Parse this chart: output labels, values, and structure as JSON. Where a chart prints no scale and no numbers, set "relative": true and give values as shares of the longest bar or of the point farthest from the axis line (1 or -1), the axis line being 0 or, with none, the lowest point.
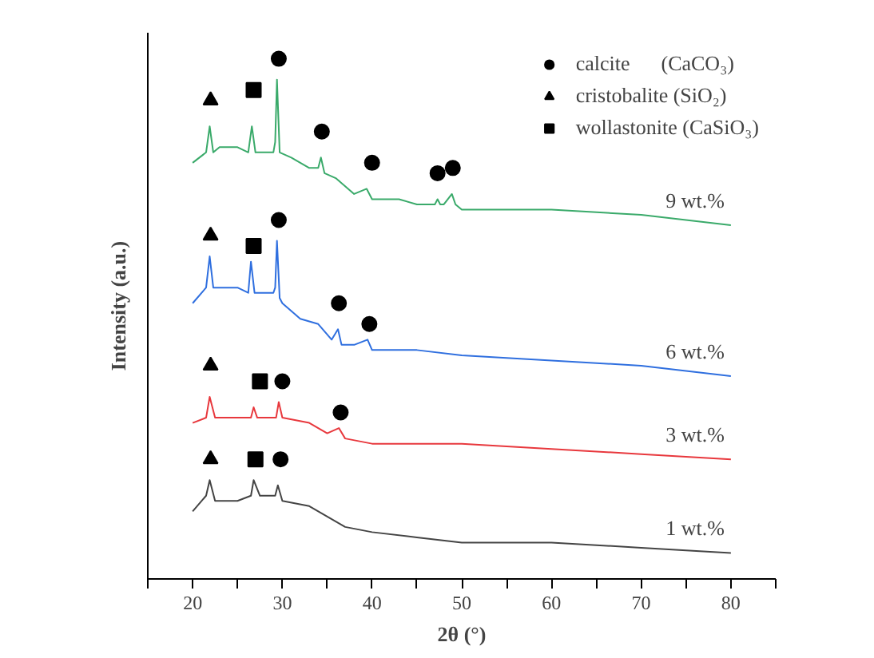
{
  "chart_data": {
    "type": "line",
    "relative": true,
    "xlabel": "2θ (°)",
    "ylabel": "Intensity (a.u.)",
    "xlim": [
      15,
      85
    ],
    "xticks": [
      {
        "value": 15,
        "label": null
      },
      20,
      {
        "value": 25,
        "label": null
      },
      30,
      {
        "value": 35,
        "label": null
      },
      40,
      {
        "value": 45,
        "label": null
      },
      50,
      {
        "value": 55,
        "label": null
      },
      60,
      {
        "value": 65,
        "label": null
      },
      70,
      {
        "value": 75,
        "label": null
      },
      80,
      {
        "value": 85,
        "label": null
      }
    ],
    "tick_labels": "x",
    "grid": false,
    "legend": "top right",
    "series": [
      {
        "name": "9 wt.%",
        "color": "#3aaa6a",
        "x": [
          20,
          21.5,
          21.9,
          22.3,
          23,
          25,
          26.2,
          26.6,
          27,
          29,
          29.2,
          29.4,
          29.7,
          31,
          33,
          34,
          34.3,
          34.7,
          36,
          38,
          39.4,
          40,
          43,
          45,
          47,
          47.3,
          47.6,
          48,
          48.9,
          49.3,
          50,
          60,
          70,
          80
        ],
        "values": [
          0.8,
          0.82,
          0.87,
          0.82,
          0.83,
          0.83,
          0.82,
          0.87,
          0.82,
          0.82,
          0.84,
          0.96,
          0.82,
          0.81,
          0.79,
          0.79,
          0.81,
          0.78,
          0.77,
          0.74,
          0.75,
          0.73,
          0.73,
          0.72,
          0.72,
          0.73,
          0.72,
          0.72,
          0.74,
          0.72,
          0.71,
          0.71,
          0.7,
          0.68
        ]
      },
      {
        "name": "6 wt.%",
        "color": "#2f6fdf",
        "x": [
          20,
          21.5,
          21.9,
          22.3,
          23,
          25,
          26.2,
          26.5,
          26.9,
          29,
          29.2,
          29.4,
          29.7,
          30,
          32,
          34,
          35.5,
          36.2,
          36.6,
          38,
          39.5,
          40,
          45,
          50,
          60,
          70,
          80
        ],
        "values": [
          0.53,
          0.56,
          0.62,
          0.56,
          0.56,
          0.56,
          0.55,
          0.61,
          0.55,
          0.55,
          0.56,
          0.65,
          0.54,
          0.53,
          0.5,
          0.49,
          0.46,
          0.48,
          0.45,
          0.45,
          0.46,
          0.44,
          0.44,
          0.43,
          0.42,
          0.41,
          0.39
        ]
      },
      {
        "name": "3 wt.%",
        "color": "#e8383d",
        "x": [
          20,
          21.5,
          21.9,
          22.5,
          25,
          26.5,
          26.8,
          27.2,
          29.3,
          29.6,
          30,
          33,
          35,
          36.3,
          37,
          40,
          45,
          50,
          60,
          70,
          80
        ],
        "values": [
          0.3,
          0.31,
          0.35,
          0.31,
          0.31,
          0.31,
          0.33,
          0.31,
          0.31,
          0.34,
          0.31,
          0.3,
          0.28,
          0.29,
          0.27,
          0.26,
          0.26,
          0.26,
          0.25,
          0.24,
          0.23
        ]
      },
      {
        "name": "1 wt.%",
        "color": "#444444",
        "x": [
          20,
          21.5,
          21.9,
          22.5,
          25,
          26.5,
          26.8,
          27.5,
          29.2,
          29.5,
          30,
          33,
          35,
          37,
          40,
          45,
          50,
          60,
          70,
          80
        ],
        "values": [
          0.13,
          0.16,
          0.19,
          0.15,
          0.15,
          0.16,
          0.19,
          0.16,
          0.16,
          0.18,
          0.15,
          0.14,
          0.12,
          0.1,
          0.09,
          0.08,
          0.07,
          0.07,
          0.06,
          0.05
        ]
      },
      {
        "name": "calcite      (CaCO₃)",
        "type": "scatter",
        "marker": "circle",
        "color": "#000000",
        "x": [
          29.6,
          34.4,
          40,
          47.3,
          49,
          29.6,
          36.3,
          39.7,
          30,
          36.5,
          29.8
        ],
        "values": [
          1.0,
          0.86,
          0.8,
          0.78,
          0.79,
          0.69,
          0.53,
          0.49,
          0.38,
          0.32,
          0.23
        ]
      },
      {
        "name": "cristobalite (SiO₂)",
        "type": "scatter",
        "marker": "triangle",
        "color": "#000000",
        "x": [
          22,
          22,
          22,
          22
        ],
        "values": [
          0.92,
          0.66,
          0.41,
          0.23
        ]
      },
      {
        "name": "wollastonite (CaSiO₃)",
        "type": "scatter",
        "marker": "square",
        "color": "#000000",
        "x": [
          26.8,
          26.8,
          27.5,
          27
        ],
        "values": [
          0.94,
          0.64,
          0.38,
          0.23
        ]
      }
    ]
  }
}
